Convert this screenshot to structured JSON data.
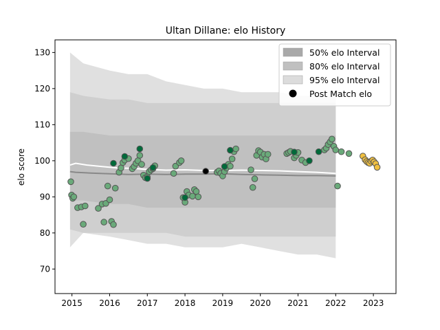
{
  "chart_data": {
    "type": "scatter",
    "title": "Ultan Dillane: elo History",
    "xlabel": "",
    "ylabel": "elo score",
    "xlim": [
      2014.55,
      2023.6
    ],
    "ylim": [
      63.2,
      133.5
    ],
    "xticks": [
      2015,
      2016,
      2017,
      2018,
      2019,
      2020,
      2021,
      2022,
      2023
    ],
    "yticks": [
      70,
      80,
      90,
      100,
      110,
      120,
      130
    ],
    "legend_position": "top-right",
    "legend": [
      {
        "label": "50% elo Interval",
        "kind": "patch",
        "color": "#a9a9a9"
      },
      {
        "label": "80% elo Interval",
        "kind": "patch",
        "color": "#c0c0c0"
      },
      {
        "label": "95% elo Interval",
        "kind": "patch",
        "color": "#dcdcdc"
      },
      {
        "label": "Post Match elo",
        "kind": "marker",
        "color": "#000000"
      }
    ],
    "bands": [
      {
        "name": "95% elo Interval",
        "color": "#e0e0e0",
        "x": [
          2014.95,
          2015.3,
          2016.0,
          2016.5,
          2017.0,
          2017.5,
          2018.0,
          2018.5,
          2019.0,
          2019.5,
          2020.0,
          2020.5,
          2021.0,
          2021.5,
          2022.0
        ],
        "lower": [
          76,
          80,
          79,
          78,
          77,
          77,
          76,
          76,
          76,
          77,
          76,
          75,
          74,
          74,
          73
        ],
        "upper": [
          130,
          127,
          125,
          124,
          124,
          122,
          121,
          120,
          120,
          119,
          119,
          119,
          118,
          118,
          118
        ]
      },
      {
        "name": "80% elo Interval",
        "color": "#cfcfcf",
        "x": [
          2014.95,
          2015.3,
          2016.0,
          2016.5,
          2017.0,
          2017.5,
          2018.0,
          2018.5,
          2019.0,
          2019.5,
          2020.0,
          2020.5,
          2021.0,
          2021.5,
          2022.0
        ],
        "lower": [
          81,
          80,
          80,
          80,
          80,
          80,
          79,
          79,
          79,
          79,
          79,
          79,
          79,
          79,
          79
        ],
        "upper": [
          119,
          118,
          117,
          117,
          116,
          116,
          116,
          116,
          116,
          116,
          116,
          116,
          116,
          116,
          116
        ]
      },
      {
        "name": "50% elo Interval",
        "color": "#c0c0c0",
        "x": [
          2014.95,
          2015.3,
          2016.0,
          2016.5,
          2017.0,
          2017.5,
          2018.0,
          2018.5,
          2019.0,
          2019.5,
          2020.0,
          2020.5,
          2021.0,
          2021.5,
          2022.0
        ],
        "lower": [
          89,
          89,
          88,
          88,
          87,
          87,
          87,
          87,
          87,
          87,
          87,
          87,
          87,
          87,
          87
        ],
        "upper": [
          108,
          108,
          107,
          107,
          107,
          107,
          107,
          107,
          107,
          107,
          107,
          107,
          107,
          107,
          107
        ]
      }
    ],
    "mean_lines": [
      {
        "name": "",
        "color": "#ffffff",
        "x": [
          2014.95,
          2015.1,
          2015.4,
          2015.8,
          2016.2,
          2016.6,
          2017.0,
          2017.5,
          2018.0,
          2018.5,
          2019.0,
          2019.5,
          2020.0,
          2020.5,
          2021.0,
          2021.5,
          2022.0
        ],
        "y": [
          98.8,
          99.3,
          98.8,
          98.4,
          98.0,
          97.9,
          97.6,
          97.4,
          97.5,
          97.3,
          97.3,
          97.4,
          97.3,
          97.2,
          97.0,
          96.8,
          96.5
        ]
      },
      {
        "name": "",
        "color": "#888888",
        "x": [
          2014.95,
          2015.1,
          2015.5,
          2016.0,
          2016.5,
          2017.0,
          2017.5,
          2018.0,
          2018.5,
          2019.0,
          2019.5,
          2020.0,
          2020.5,
          2021.0,
          2021.5,
          2022.0
        ],
        "y": [
          97.0,
          96.8,
          96.6,
          96.4,
          96.2,
          96.3,
          96.2,
          96.3,
          96.3,
          96.4,
          96.2,
          96.1,
          96.0,
          95.9,
          95.9,
          95.8
        ]
      }
    ],
    "series": [
      {
        "name": "",
        "color": "#6aaa7a",
        "x": [
          2014.97,
          2014.99,
          2015.02,
          2015.05,
          2015.15,
          2015.25,
          2015.3,
          2015.35,
          2015.7,
          2015.8,
          2015.85,
          2015.9,
          2015.95,
          2016.0,
          2016.05,
          2016.1,
          2016.15,
          2016.25,
          2016.3,
          2016.35,
          2016.4,
          2016.5,
          2016.6,
          2016.65,
          2016.7,
          2016.75,
          2016.8,
          2016.85,
          2016.9,
          2016.95,
          2017.0,
          2017.05,
          2017.1,
          2017.15,
          2017.2,
          2017.7,
          2017.75,
          2017.85,
          2017.9,
          2017.95,
          2018.0,
          2018.05,
          2018.1,
          2018.2,
          2018.25,
          2018.3,
          2018.35,
          2018.85,
          2018.9,
          2018.95,
          2019.0,
          2019.05,
          2019.1,
          2019.15,
          2019.2,
          2019.25,
          2019.3,
          2019.35,
          2019.75,
          2019.8,
          2019.85,
          2019.9,
          2019.95,
          2020.0,
          2020.05,
          2020.1,
          2020.15,
          2020.2,
          2020.7,
          2020.75,
          2020.8,
          2020.9,
          2020.95,
          2021.0,
          2021.1,
          2021.2,
          2021.7,
          2021.75,
          2021.8,
          2021.85,
          2021.9,
          2021.95,
          2022.0,
          2022.05,
          2022.15,
          2022.35
        ],
        "y": [
          94.2,
          90.5,
          89.6,
          90.0,
          87.0,
          87.2,
          82.4,
          87.5,
          86.8,
          88.0,
          83.0,
          88.2,
          93.0,
          89.2,
          83.2,
          82.3,
          92.4,
          96.8,
          98.0,
          99.5,
          100.2,
          100.6,
          97.8,
          98.4,
          99.3,
          100.0,
          101.5,
          99.0,
          96.0,
          95.3,
          95.5,
          97.0,
          97.5,
          97.8,
          98.6,
          96.5,
          98.5,
          99.5,
          100.0,
          89.8,
          88.5,
          91.5,
          90.5,
          90.2,
          92.0,
          91.5,
          90.0,
          96.8,
          97.2,
          96.5,
          95.8,
          97.0,
          98.0,
          99.0,
          98.5,
          100.5,
          102.5,
          103.3,
          97.5,
          92.6,
          95.0,
          101.5,
          102.8,
          102.4,
          101.0,
          101.8,
          100.5,
          101.8,
          102.0,
          102.3,
          102.6,
          100.8,
          101.5,
          102.3,
          100.2,
          99.5,
          103.0,
          103.5,
          104.5,
          105.2,
          106.0,
          104.0,
          103.0,
          93.0,
          102.5,
          102.0
        ]
      },
      {
        "name": "",
        "color": "#006a3a",
        "x": [
          2016.1,
          2016.4,
          2016.8,
          2017.0,
          2017.15,
          2018.0,
          2019.05,
          2019.2,
          2020.9,
          2021.3,
          2021.55
        ],
        "y": [
          99.3,
          101.2,
          103.3,
          95.1,
          98.1,
          89.8,
          98.4,
          102.9,
          102.4,
          100.0,
          102.5
        ]
      },
      {
        "name": "",
        "color": "#000000",
        "x": [
          2018.55
        ],
        "y": [
          97.1
        ]
      },
      {
        "name": "",
        "color": "#f0c040",
        "x": [
          2022.72,
          2022.78,
          2022.82,
          2022.86,
          2022.9,
          2022.94,
          2022.98,
          2023.02,
          2023.06,
          2023.1
        ],
        "y": [
          101.3,
          100.3,
          99.8,
          99.5,
          99.3,
          99.9,
          100.2,
          99.7,
          99.2,
          98.2
        ]
      }
    ]
  }
}
